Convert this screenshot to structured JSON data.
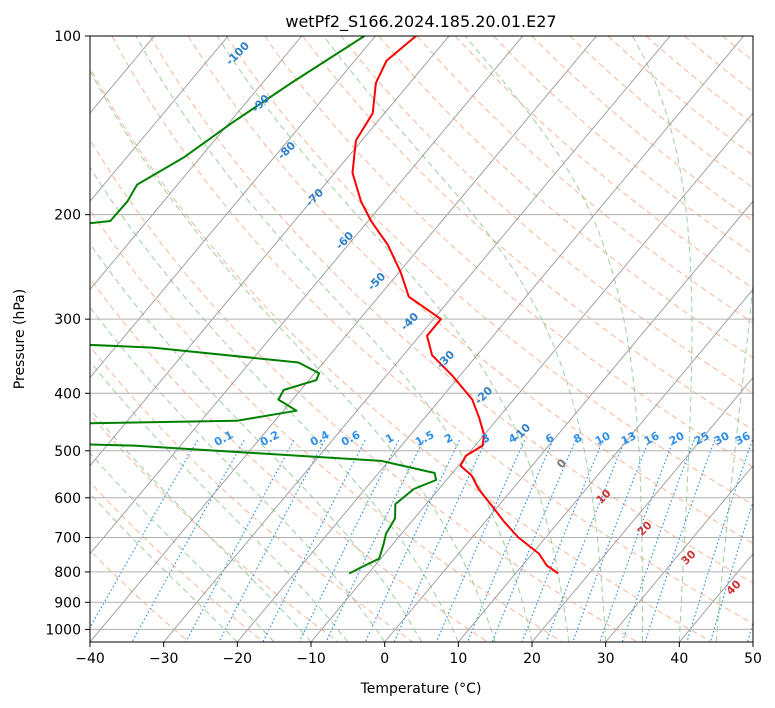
{
  "chart_data": {
    "type": "skew-t log-p",
    "title": "wetPf2_S166.2024.185.20.01.E27",
    "xlabel": "Temperature (°C)",
    "ylabel": "Pressure (hPa)",
    "xlim": [
      -40,
      50
    ],
    "ylim": [
      1050,
      100
    ],
    "y_scale": "log",
    "grid": true,
    "legend": "none",
    "x_ticks": [
      "−40",
      "−30",
      "−20",
      "−10",
      "0",
      "10",
      "20",
      "30",
      "40",
      "50"
    ],
    "y_ticks": [
      "100",
      "200",
      "300",
      "400",
      "500",
      "600",
      "700",
      "800",
      "900",
      "1000"
    ],
    "colors": {
      "temperature": "#ff0000",
      "dewpoint": "#008000",
      "isotherm": "#999999",
      "dry_adiabat": "#f4a582",
      "moist_adiabat": "#7fbf7f",
      "mixing_ratio": "#1e88e5",
      "label_blue": "#2f80c8",
      "label_red": "#cc3333",
      "label_gray": "#777777"
    },
    "series": [
      {
        "variable": "temperature",
        "color": "#ff0000",
        "points": [
          {
            "p": 100,
            "t": -64.5
          },
          {
            "p": 110,
            "t": -65.7
          },
          {
            "p": 120,
            "t": -64.6
          },
          {
            "p": 135,
            "t": -61.6
          },
          {
            "p": 150,
            "t": -60.8
          },
          {
            "p": 170,
            "t": -57.6
          },
          {
            "p": 190,
            "t": -53.2
          },
          {
            "p": 205,
            "t": -49.6
          },
          {
            "p": 225,
            "t": -44.6
          },
          {
            "p": 250,
            "t": -39.8
          },
          {
            "p": 275,
            "t": -35.9
          },
          {
            "p": 300,
            "t": -29.0
          },
          {
            "p": 320,
            "t": -29.0
          },
          {
            "p": 345,
            "t": -26.1
          },
          {
            "p": 375,
            "t": -20.8
          },
          {
            "p": 410,
            "t": -15.6
          },
          {
            "p": 440,
            "t": -12.6
          },
          {
            "p": 470,
            "t": -10.0
          },
          {
            "p": 490,
            "t": -9.0
          },
          {
            "p": 510,
            "t": -10.1
          },
          {
            "p": 530,
            "t": -9.7
          },
          {
            "p": 550,
            "t": -7.1
          },
          {
            "p": 580,
            "t": -4.6
          },
          {
            "p": 620,
            "t": -0.8
          },
          {
            "p": 660,
            "t": 2.7
          },
          {
            "p": 700,
            "t": 6.3
          },
          {
            "p": 745,
            "t": 10.9
          },
          {
            "p": 780,
            "t": 13.3
          },
          {
            "p": 805,
            "t": 15.8
          }
        ]
      },
      {
        "variable": "dewpoint",
        "color": "#008000",
        "points": [
          {
            "p": 100,
            "t": -71.5
          },
          {
            "p": 120,
            "t": -76.1
          },
          {
            "p": 140,
            "t": -79.6
          },
          {
            "p": 160,
            "t": -82.2
          },
          {
            "p": 178,
            "t": -85.5
          },
          {
            "p": 190,
            "t": -84.9
          },
          {
            "p": 205,
            "t": -85.0
          },
          {
            "p": 220,
            "t": -105.3
          },
          {
            "p": 230,
            "t": -105.0
          },
          {
            "p": 255,
            "t": -103.1
          },
          {
            "p": 275,
            "t": -99.4
          },
          {
            "p": 290,
            "t": -107.0
          },
          {
            "p": 305,
            "t": -106.6
          },
          {
            "p": 320,
            "t": -103.9
          },
          {
            "p": 335,
            "t": -64.9
          },
          {
            "p": 355,
            "t": -43.4
          },
          {
            "p": 370,
            "t": -39.4
          },
          {
            "p": 380,
            "t": -39.0
          },
          {
            "p": 395,
            "t": -42.3
          },
          {
            "p": 410,
            "t": -41.9
          },
          {
            "p": 428,
            "t": -38.2
          },
          {
            "p": 445,
            "t": -45.2
          },
          {
            "p": 460,
            "t": -115.0
          },
          {
            "p": 470,
            "t": -118.0
          },
          {
            "p": 490,
            "t": -56.3
          },
          {
            "p": 520,
            "t": -21.0
          },
          {
            "p": 545,
            "t": -12.4
          },
          {
            "p": 560,
            "t": -11.4
          },
          {
            "p": 580,
            "t": -13.4
          },
          {
            "p": 615,
            "t": -14.2
          },
          {
            "p": 650,
            "t": -12.6
          },
          {
            "p": 690,
            "t": -12.1
          },
          {
            "p": 720,
            "t": -11.2
          },
          {
            "p": 760,
            "t": -10.2
          },
          {
            "p": 785,
            "t": -11.6
          },
          {
            "p": 805,
            "t": -12.6
          }
        ]
      }
    ],
    "dry_adiabat_labels": [
      "-100",
      "-90",
      "-80",
      "-70",
      "-60",
      "-50",
      "-40",
      "-30",
      "-20",
      "-10",
      "0",
      "10",
      "20",
      "30",
      "40"
    ],
    "mixing_ratio_labels": [
      "0.1",
      "0.2",
      "0.4",
      "0.6",
      "1",
      "1.5",
      "2",
      "3",
      "4",
      "6",
      "8",
      "10",
      "13",
      "16",
      "20",
      "25",
      "30",
      "36"
    ]
  }
}
